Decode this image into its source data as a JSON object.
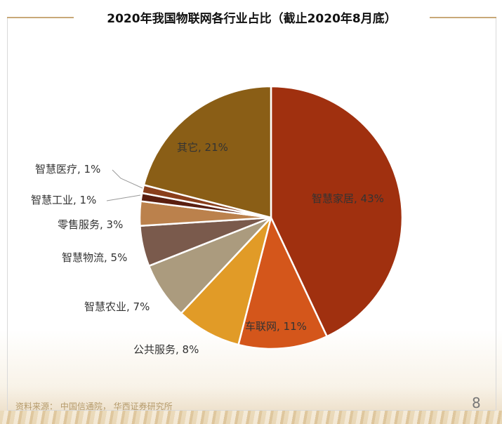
{
  "title": "2020年我国物联网各行业占比（截止2020年8月底）",
  "source": "资料来源： 中国信通院， 华西证券研究所",
  "page_number": "8",
  "chart_data": {
    "type": "pie",
    "title": "2020年我国物联网各行业占比（截止2020年8月底）",
    "start_angle_deg": 0,
    "direction": "clockwise",
    "slices": [
      {
        "label": "智慧家居",
        "value": 43,
        "text": "智慧家居, 43%",
        "color": "#a0300f"
      },
      {
        "label": "车联网",
        "value": 11,
        "text": "车联网, 11%",
        "color": "#d4561b"
      },
      {
        "label": "公共服务",
        "value": 8,
        "text": "公共服务, 8%",
        "color": "#e19b27"
      },
      {
        "label": "智慧农业",
        "value": 7,
        "text": "智慧农业, 7%",
        "color": "#ab9b7e"
      },
      {
        "label": "智慧物流",
        "value": 5,
        "text": "智慧物流, 5%",
        "color": "#7a5a4c"
      },
      {
        "label": "零售服务",
        "value": 3,
        "text": "零售服务, 3%",
        "color": "#bb814c"
      },
      {
        "label": "智慧工业",
        "value": 1,
        "text": "智慧工业, 1%",
        "color": "#5a1f10"
      },
      {
        "label": "智慧医疗",
        "value": 1,
        "text": "智慧医疗, 1%",
        "color": "#8a3f1c"
      },
      {
        "label": "其它",
        "value": 21,
        "text": "其它, 21%",
        "color": "#8a5e16"
      }
    ]
  }
}
